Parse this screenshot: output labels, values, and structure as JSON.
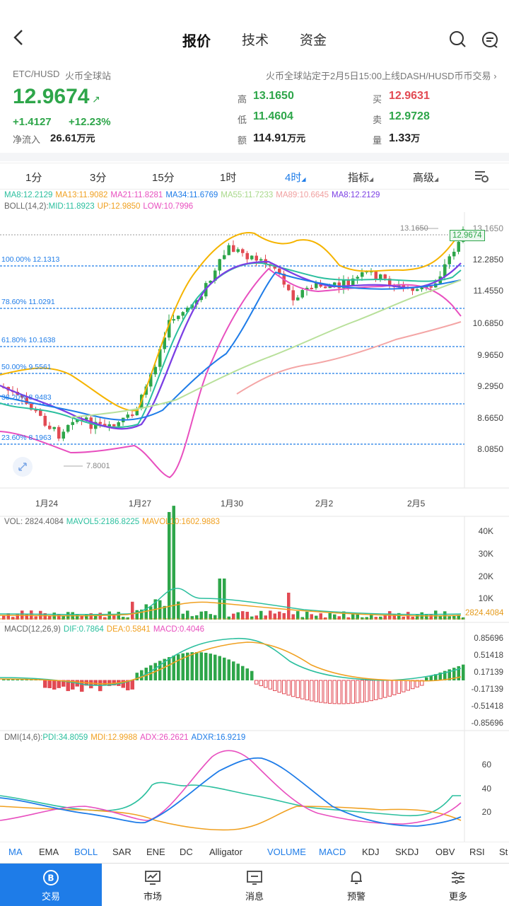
{
  "header": {
    "tabs": [
      {
        "label": "报价",
        "active": true
      },
      {
        "label": "技术",
        "active": false
      },
      {
        "label": "资金",
        "active": false
      }
    ],
    "icons": [
      "back-icon",
      "search-icon",
      "chat-icon"
    ]
  },
  "info": {
    "pair": "ETC/HUSD",
    "exchange": "火币全球站",
    "notice": "火币全球站定于2月5日15:00上线DASH/HUSD币币交易",
    "price": "12.9674",
    "change": "+1.4127",
    "change_pct": "+12.23%",
    "net_inflow_label": "净流入",
    "net_inflow_value": "26.61",
    "net_inflow_unit": "万元",
    "high_label": "高",
    "high": "13.1650",
    "low_label": "低",
    "low": "11.4604",
    "amount_label": "额",
    "amount": "114.91",
    "amount_unit": "万元",
    "buy_label": "买",
    "buy": "12.9631",
    "sell_label": "卖",
    "sell": "12.9728",
    "volume_label": "量",
    "volume": "1.33",
    "volume_unit": "万"
  },
  "intervals": [
    {
      "label": "1分",
      "active": false
    },
    {
      "label": "3分",
      "active": false
    },
    {
      "label": "15分",
      "active": false
    },
    {
      "label": "1时",
      "active": false
    },
    {
      "label": "4时",
      "active": true
    },
    {
      "label": "指标",
      "active": false
    },
    {
      "label": "高级",
      "active": false
    }
  ],
  "colors": {
    "accent": "#1e7ce8",
    "up": "#2ea64a",
    "down": "#e24a53",
    "ma8": "#f5a623",
    "ma13": "#7b3fe4",
    "ma21": "#e84fbf",
    "ma34": "#1e7ce8",
    "ma55": "#a8d88a",
    "ma89": "#f0a0a0"
  },
  "ma_legend": [
    {
      "text": "MA8:12.2129",
      "color": "#2bbf9e"
    },
    {
      "text": "MA13:11.9082",
      "color": "#f0a020"
    },
    {
      "text": "MA21:11.8281",
      "color": "#e84fbf"
    },
    {
      "text": "MA34:11.6769",
      "color": "#1e7ce8"
    },
    {
      "text": "MA55:11.7233",
      "color": "#a8d88a"
    },
    {
      "text": "MA89:10.6645",
      "color": "#f0a0a0"
    },
    {
      "text": "MA8:12.2129",
      "color": "#7b3fe4"
    }
  ],
  "boll_legend": [
    {
      "text": "BOLL(14,2):",
      "color": "#666"
    },
    {
      "text": "MID:11.8923",
      "color": "#2bbf9e"
    },
    {
      "text": "UP:12.9850",
      "color": "#f0a020"
    },
    {
      "text": "LOW:10.7996",
      "color": "#e84fbf"
    }
  ],
  "price_axis": [
    "13.1650",
    "12.2850",
    "11.4550",
    "10.6850",
    "9.9650",
    "9.2950",
    "8.6650",
    "8.0850"
  ],
  "current_price_tag": "12.9674",
  "high_marker": "13.1650",
  "low_marker": "7.8001",
  "fib_levels": [
    "100.00% 12.1313",
    "78.60% 11.0291",
    "61.80% 10.1638",
    "50.00% 9.5561",
    "38.20% 8.9483",
    "23.60% 8.1963"
  ],
  "dates": [
    "1月24",
    "1月27",
    "1月30",
    "2月2",
    "2月5"
  ],
  "vol_legend": [
    {
      "text": "VOL: 2824.4084",
      "color": "#666"
    },
    {
      "text": "MAVOL5:2186.8225",
      "color": "#2bbf9e"
    },
    {
      "text": "MAVOL10:1602.9883",
      "color": "#f0a020"
    }
  ],
  "vol_axis": [
    "40K",
    "30K",
    "20K",
    "10K"
  ],
  "vol_tag": "2824.4084",
  "macd_legend": [
    {
      "text": "MACD(12,26,9)",
      "color": "#666"
    },
    {
      "text": "DIF:0.7864",
      "color": "#2bbf9e"
    },
    {
      "text": "DEA:0.5841",
      "color": "#f0a020"
    },
    {
      "text": "MACD:0.4046",
      "color": "#e84fbf"
    }
  ],
  "macd_axis": [
    "0.85696",
    "0.51418",
    "0.17139",
    "-0.17139",
    "-0.51418",
    "-0.85696"
  ],
  "dmi_legend": [
    {
      "text": "DMI(14,6):",
      "color": "#666"
    },
    {
      "text": "PDI:34.8059",
      "color": "#2bbf9e"
    },
    {
      "text": "MDI:12.9988",
      "color": "#f0a020"
    },
    {
      "text": "ADX:26.2621",
      "color": "#e84fbf"
    },
    {
      "text": "ADXR:16.9219",
      "color": "#1e7ce8"
    }
  ],
  "dmi_axis": [
    "60",
    "40",
    "20"
  ],
  "indicators": [
    {
      "label": "MA",
      "active": true
    },
    {
      "label": "EMA",
      "active": false
    },
    {
      "label": "BOLL",
      "active": true
    },
    {
      "label": "SAR",
      "active": false
    },
    {
      "label": "ENE",
      "active": false
    },
    {
      "label": "DC",
      "active": false
    },
    {
      "label": "Alligator",
      "active": false
    },
    {
      "label": "VOLUME",
      "active": true
    },
    {
      "label": "MACD",
      "active": true
    },
    {
      "label": "KDJ",
      "active": false
    },
    {
      "label": "SKDJ",
      "active": false
    },
    {
      "label": "OBV",
      "active": false
    },
    {
      "label": "RSI",
      "active": false
    },
    {
      "label": "St",
      "active": false
    }
  ],
  "nav": [
    {
      "label": "交易",
      "icon": "trade-icon",
      "active": true
    },
    {
      "label": "市场",
      "icon": "market-icon",
      "active": false
    },
    {
      "label": "消息",
      "icon": "message-icon",
      "active": false
    },
    {
      "label": "预警",
      "icon": "bell-icon",
      "active": false
    },
    {
      "label": "更多",
      "icon": "more-icon",
      "active": false
    }
  ]
}
